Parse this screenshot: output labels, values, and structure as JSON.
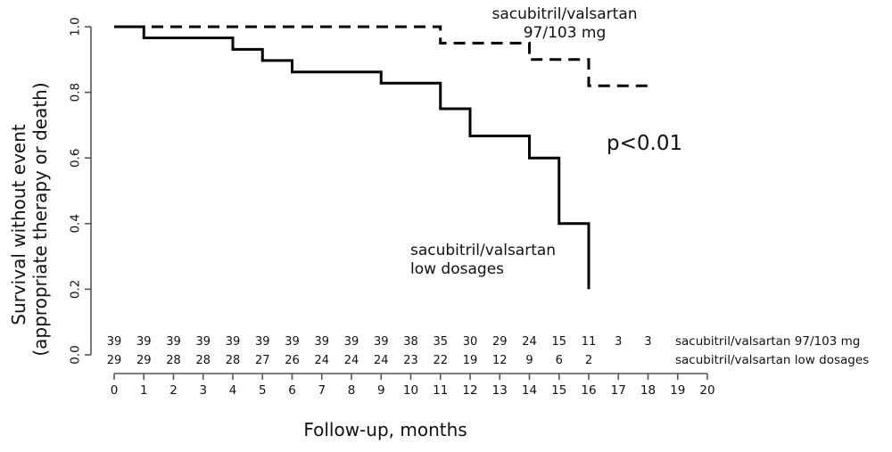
{
  "figure": {
    "background": "#ffffff",
    "curve_color": "#000000",
    "axis_color": "#555555",
    "text_color": "#111111"
  },
  "chart_data": {
    "type": "line",
    "subtype": "kaplan-meier-step-curves",
    "title": "",
    "xlabel": "Follow-up, months",
    "ylabel_lines": [
      "Survival without event",
      "(appropriate therapy or death)"
    ],
    "xlim": [
      0,
      20
    ],
    "ylim": [
      0.0,
      1.0
    ],
    "grid": false,
    "x_ticks": [
      0,
      1,
      2,
      3,
      4,
      5,
      6,
      7,
      8,
      9,
      10,
      11,
      12,
      13,
      14,
      15,
      16,
      17,
      18,
      19,
      20
    ],
    "y_ticks": [
      "0.0",
      "0.2",
      "0.4",
      "0.6",
      "0.8",
      "1.0"
    ],
    "y_tick_values": [
      0.0,
      0.2,
      0.4,
      0.6,
      0.8,
      1.0
    ],
    "annotation": {
      "text": "p<0.01"
    },
    "series": [
      {
        "name": "sacubitril/valsartan 97/103 mg",
        "line_style": "dashed",
        "label_lines": [
          "sacubitril/valsartan",
          "97/103 mg"
        ],
        "steps": [
          [
            0,
            1.0
          ],
          [
            11,
            0.95
          ],
          [
            14,
            0.9
          ],
          [
            16,
            0.82
          ]
        ],
        "end_x": 18
      },
      {
        "name": "sacubitril/valsartan low dosages",
        "line_style": "solid",
        "label_lines": [
          "sacubitril/valsartan",
          "low dosages"
        ],
        "steps": [
          [
            0,
            1.0
          ],
          [
            1,
            0.966
          ],
          [
            4,
            0.931
          ],
          [
            5,
            0.897
          ],
          [
            6,
            0.862
          ],
          [
            9,
            0.828
          ],
          [
            11,
            0.75
          ],
          [
            12,
            0.667
          ],
          [
            14,
            0.6
          ],
          [
            15,
            0.4
          ],
          [
            16,
            0.2
          ]
        ],
        "end_x": 16
      }
    ],
    "number_at_risk": {
      "rows": [
        {
          "label": "sacubitril/valsartan 97/103 mg",
          "counts": [
            39,
            39,
            39,
            39,
            39,
            39,
            39,
            39,
            39,
            39,
            38,
            35,
            30,
            29,
            24,
            15,
            11,
            3,
            3
          ]
        },
        {
          "label": "sacubitril/valsartan low dosages",
          "counts": [
            29,
            29,
            28,
            28,
            28,
            27,
            26,
            24,
            24,
            24,
            23,
            22,
            19,
            12,
            9,
            6,
            2
          ]
        }
      ]
    }
  }
}
